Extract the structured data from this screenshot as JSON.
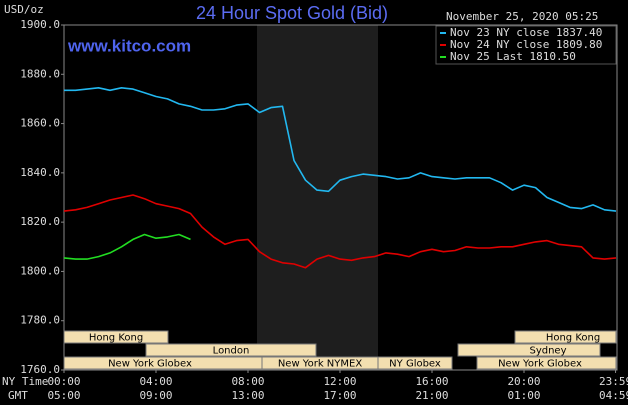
{
  "chart_data": {
    "type": "line",
    "title": "24 Hour Spot Gold (Bid)",
    "y_unit": "USD/oz",
    "site": "www.kitco.com",
    "timestamp": "November 25, 2020 05:25",
    "x": [
      0,
      0.5,
      1,
      1.5,
      2,
      2.5,
      3,
      3.5,
      4,
      4.5,
      5,
      5.5,
      6,
      6.5,
      7,
      7.5,
      8,
      8.5,
      9,
      9.5,
      10,
      10.5,
      11,
      11.5,
      12,
      12.5,
      13,
      13.5,
      14,
      14.5,
      15,
      15.5,
      16,
      16.5,
      17,
      17.5,
      18,
      18.5,
      19,
      19.5,
      20,
      20.5,
      21,
      21.5,
      22,
      22.5,
      23,
      23.5,
      24
    ],
    "series": [
      {
        "name": "Nov 23 NY close 1837.40",
        "color": "#22b8f0",
        "values": [
          1873.5,
          1873.5,
          1874,
          1874.5,
          1873.5,
          1874.5,
          1874,
          1872.5,
          1871,
          1870,
          1868,
          1867,
          1865.5,
          1865.5,
          1866,
          1867.5,
          1868,
          1864.5,
          1866.5,
          1867,
          1845,
          1837,
          1833,
          1832.5,
          1837,
          1838.5,
          1839.5,
          1839,
          1838.5,
          1837.5,
          1838,
          1840,
          1838.5,
          1838,
          1837.5,
          1838,
          1838,
          1838,
          1836,
          1833,
          1835,
          1834,
          1830,
          1828,
          1826,
          1825.5,
          1827,
          1825,
          1824.5
        ]
      },
      {
        "name": "Nov 24 NY close 1809.80",
        "color": "#e00000",
        "values": [
          1824.5,
          1825,
          1826,
          1827.5,
          1829,
          1830,
          1831,
          1829.5,
          1827.5,
          1826.5,
          1825.5,
          1823.5,
          1818,
          1814,
          1811,
          1812.5,
          1813,
          1808,
          1805,
          1803.5,
          1803,
          1801.5,
          1805,
          1806.5,
          1805,
          1804.5,
          1805.5,
          1806,
          1807.5,
          1807,
          1806,
          1808,
          1809,
          1808,
          1808.5,
          1810,
          1809.5,
          1809.5,
          1810,
          1810,
          1811,
          1812,
          1812.5,
          1811,
          1810.5,
          1810,
          1805.5,
          1805,
          1805.5
        ]
      },
      {
        "name": "Nov 25 Last 1810.50",
        "color": "#22dd22",
        "values": [
          1805.5,
          1805,
          1805,
          1806,
          1807.5,
          1810,
          1813,
          1815,
          1813.5,
          1814,
          1815,
          1813,
          null,
          null,
          null,
          null,
          null,
          null,
          null,
          null,
          null,
          null,
          null,
          null,
          null,
          null,
          null,
          null,
          null,
          null,
          null,
          null,
          null,
          null,
          null,
          null,
          null,
          null,
          null,
          null,
          null,
          null,
          null,
          null,
          null,
          null,
          null,
          null,
          null
        ]
      }
    ],
    "xlim": [
      0,
      24
    ],
    "ylim": [
      1760,
      1900
    ],
    "yticks": [
      {
        "value": 1760,
        "label": "1760.0"
      },
      {
        "value": 1780,
        "label": "1780.0"
      },
      {
        "value": 1800,
        "label": "1800.0"
      },
      {
        "value": 1820,
        "label": "1820.0"
      },
      {
        "value": 1840,
        "label": "1840.0"
      },
      {
        "value": 1860,
        "label": "1860.0"
      },
      {
        "value": 1880,
        "label": "1880.0"
      },
      {
        "value": 1900,
        "label": "1900.0"
      }
    ],
    "xticks": [
      {
        "value": 0,
        "label": "00:00"
      },
      {
        "value": 4,
        "label": "04:00"
      },
      {
        "value": 8,
        "label": "08:00"
      },
      {
        "value": 12,
        "label": "12:00"
      },
      {
        "value": 16,
        "label": "16:00"
      },
      {
        "value": 20,
        "label": "20:00"
      },
      {
        "value": 23.98,
        "label": "23:59"
      }
    ],
    "gmt_ticks": [
      {
        "value": 0,
        "label": "05:00"
      },
      {
        "value": 4,
        "label": "09:00"
      },
      {
        "value": 8,
        "label": "13:00"
      },
      {
        "value": 12,
        "label": "17:00"
      },
      {
        "value": 16,
        "label": "21:00"
      },
      {
        "value": 20,
        "label": "01:00"
      },
      {
        "value": 23.98,
        "label": "04:59"
      }
    ],
    "x_row_labels": [
      "NY Time",
      "GMT"
    ],
    "markets": [
      "Hong Kong",
      "London",
      "New York Globex",
      "New York NYMEX",
      "NY Globex",
      "Hong Kong",
      "Sydney",
      "New York Globex"
    ],
    "grid": false
  }
}
